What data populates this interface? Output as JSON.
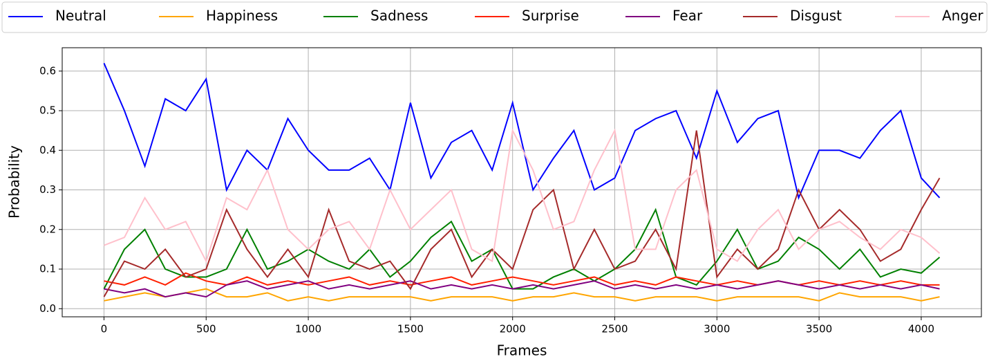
{
  "chart_data": {
    "type": "line",
    "xlabel": "Frames",
    "ylabel": "Probability",
    "x": [
      0,
      100,
      200,
      300,
      400,
      500,
      600,
      700,
      800,
      900,
      1000,
      1100,
      1200,
      1300,
      1400,
      1500,
      1600,
      1700,
      1800,
      1900,
      2000,
      2100,
      2200,
      2300,
      2400,
      2500,
      2600,
      2700,
      2800,
      2900,
      3000,
      3100,
      3200,
      3300,
      3400,
      3500,
      3600,
      3700,
      3800,
      3900,
      4000,
      4090
    ],
    "series": [
      {
        "name": "Neutral",
        "color": "#0000ff",
        "values": [
          0.62,
          0.5,
          0.36,
          0.53,
          0.5,
          0.58,
          0.3,
          0.4,
          0.35,
          0.48,
          0.4,
          0.35,
          0.35,
          0.38,
          0.3,
          0.52,
          0.33,
          0.42,
          0.45,
          0.35,
          0.52,
          0.3,
          0.38,
          0.45,
          0.3,
          0.33,
          0.45,
          0.48,
          0.5,
          0.38,
          0.55,
          0.42,
          0.48,
          0.5,
          0.28,
          0.4,
          0.4,
          0.38,
          0.45,
          0.5,
          0.33,
          0.28
        ]
      },
      {
        "name": "Happiness",
        "color": "#ffa500",
        "values": [
          0.02,
          0.03,
          0.04,
          0.03,
          0.04,
          0.05,
          0.03,
          0.03,
          0.04,
          0.02,
          0.03,
          0.02,
          0.03,
          0.03,
          0.03,
          0.03,
          0.02,
          0.03,
          0.03,
          0.03,
          0.02,
          0.03,
          0.03,
          0.04,
          0.03,
          0.03,
          0.02,
          0.03,
          0.03,
          0.03,
          0.02,
          0.03,
          0.03,
          0.03,
          0.03,
          0.02,
          0.04,
          0.03,
          0.03,
          0.03,
          0.02,
          0.03
        ]
      },
      {
        "name": "Sadness",
        "color": "#008000",
        "values": [
          0.05,
          0.15,
          0.2,
          0.1,
          0.08,
          0.08,
          0.1,
          0.2,
          0.1,
          0.12,
          0.15,
          0.12,
          0.1,
          0.15,
          0.08,
          0.12,
          0.18,
          0.22,
          0.12,
          0.15,
          0.05,
          0.05,
          0.08,
          0.1,
          0.07,
          0.1,
          0.15,
          0.25,
          0.08,
          0.06,
          0.12,
          0.2,
          0.1,
          0.12,
          0.18,
          0.15,
          0.1,
          0.15,
          0.08,
          0.1,
          0.09,
          0.13
        ]
      },
      {
        "name": "Surprise",
        "color": "#ff2000",
        "values": [
          0.07,
          0.06,
          0.08,
          0.06,
          0.09,
          0.07,
          0.06,
          0.08,
          0.06,
          0.07,
          0.06,
          0.07,
          0.08,
          0.06,
          0.07,
          0.06,
          0.07,
          0.08,
          0.06,
          0.07,
          0.08,
          0.07,
          0.06,
          0.07,
          0.08,
          0.06,
          0.07,
          0.06,
          0.08,
          0.07,
          0.06,
          0.07,
          0.06,
          0.07,
          0.06,
          0.07,
          0.06,
          0.07,
          0.06,
          0.07,
          0.06,
          0.06
        ]
      },
      {
        "name": "Fear",
        "color": "#800080",
        "values": [
          0.05,
          0.04,
          0.05,
          0.03,
          0.04,
          0.03,
          0.06,
          0.07,
          0.05,
          0.06,
          0.07,
          0.05,
          0.06,
          0.05,
          0.06,
          0.07,
          0.05,
          0.06,
          0.05,
          0.06,
          0.05,
          0.06,
          0.05,
          0.06,
          0.07,
          0.05,
          0.06,
          0.05,
          0.06,
          0.05,
          0.06,
          0.05,
          0.06,
          0.07,
          0.06,
          0.05,
          0.06,
          0.05,
          0.06,
          0.05,
          0.06,
          0.05
        ]
      },
      {
        "name": "Disgust",
        "color": "#a52a2a",
        "values": [
          0.03,
          0.12,
          0.1,
          0.15,
          0.08,
          0.1,
          0.25,
          0.15,
          0.08,
          0.15,
          0.08,
          0.25,
          0.12,
          0.1,
          0.12,
          0.05,
          0.15,
          0.2,
          0.08,
          0.15,
          0.1,
          0.25,
          0.3,
          0.1,
          0.2,
          0.1,
          0.12,
          0.2,
          0.1,
          0.45,
          0.08,
          0.15,
          0.1,
          0.15,
          0.3,
          0.2,
          0.25,
          0.2,
          0.12,
          0.15,
          0.25,
          0.33
        ]
      },
      {
        "name": "Anger",
        "color": "#ffc0cb",
        "values": [
          0.16,
          0.18,
          0.28,
          0.2,
          0.22,
          0.12,
          0.28,
          0.25,
          0.35,
          0.2,
          0.15,
          0.2,
          0.22,
          0.15,
          0.3,
          0.2,
          0.25,
          0.3,
          0.15,
          0.12,
          0.45,
          0.35,
          0.2,
          0.22,
          0.35,
          0.45,
          0.15,
          0.15,
          0.3,
          0.35,
          0.15,
          0.12,
          0.2,
          0.25,
          0.15,
          0.2,
          0.22,
          0.18,
          0.15,
          0.2,
          0.18,
          0.14
        ]
      }
    ],
    "xlim": [
      -204.5,
      4294.5
    ],
    "ylim": [
      -0.0205,
      0.659
    ],
    "xticks": [
      0,
      500,
      1000,
      1500,
      2000,
      2500,
      3000,
      3500,
      4000
    ],
    "yticks": [
      {
        "value": 0,
        "label": "0.0"
      },
      0.1,
      0.2,
      0.3,
      0.4,
      0.5,
      0.6
    ],
    "grid": true,
    "legend": "top"
  }
}
